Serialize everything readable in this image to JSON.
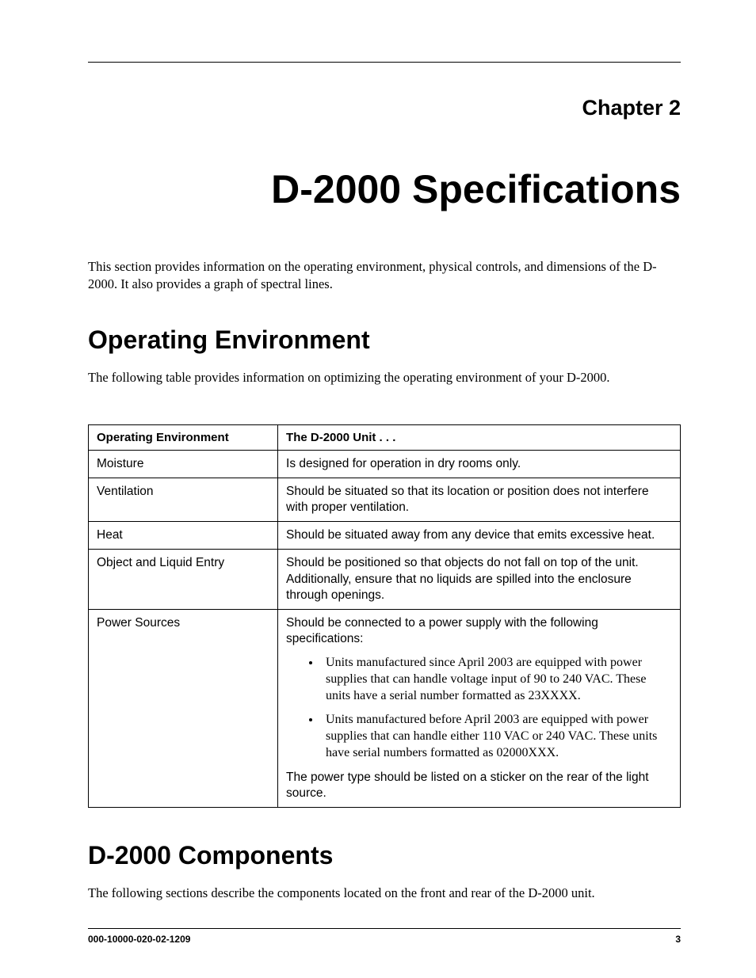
{
  "chapter_label": "Chapter 2",
  "chapter_title": "D-2000 Specifications",
  "intro": "This section provides information on the operating environment, physical controls, and dimensions of the D-2000. It also provides a graph of spectral lines.",
  "section1": {
    "heading": "Operating Environment",
    "intro": "The following table provides information on optimizing the operating environment of your D-2000."
  },
  "table": {
    "head": {
      "col1": "Operating Environment",
      "col2": "The D-2000 Unit . . ."
    },
    "rows": {
      "r0": {
        "c1": "Moisture",
        "c2": "Is designed for operation in dry rooms only."
      },
      "r1": {
        "c1": "Ventilation",
        "c2": "Should be situated so that its location or position does not interfere with proper ventilation."
      },
      "r2": {
        "c1": "Heat",
        "c2": "Should be situated away from any device that emits excessive heat."
      },
      "r3": {
        "c1": "Object and Liquid Entry",
        "c2": "Should be positioned so that objects do not fall on top of the unit. Additionally, ensure that no liquids are spilled into the enclosure through openings."
      },
      "r4": {
        "c1": "Power Sources",
        "lead": "Should be connected to a power supply with the following specifications:",
        "b1": "Units manufactured since April 2003 are equipped with power supplies that can handle voltage input of 90 to 240 VAC. These units have a serial number formatted as 23XXXX.",
        "b2": "Units manufactured before April 2003 are equipped with power supplies that can handle either 110 VAC or 240 VAC. These units have serial numbers formatted as 02000XXX.",
        "trail": "The power type should be listed on a sticker on the rear of the light source."
      }
    }
  },
  "section2": {
    "heading": "D-2000 Components",
    "intro": "The following sections describe the components located on the front and rear of the D-2000 unit."
  },
  "footer": {
    "doc_id": "000-10000-020-02-1209",
    "page_num": "3"
  }
}
